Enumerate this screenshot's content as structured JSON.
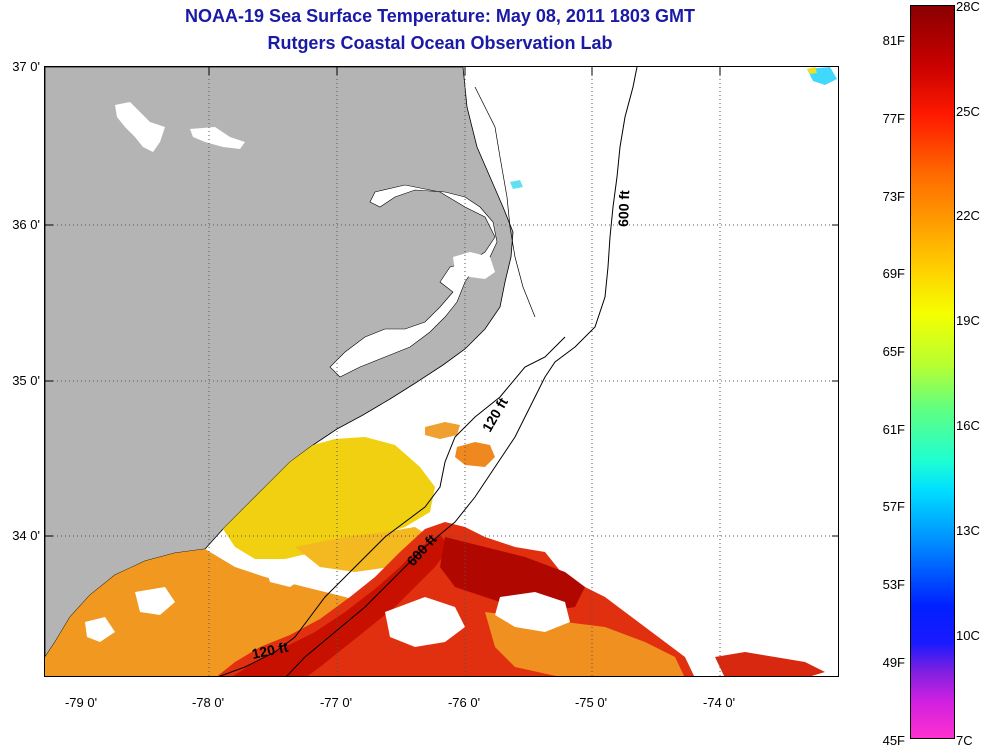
{
  "title_line1": "NOAA-19 Sea Surface Temperature:  May 08, 2011 1803 GMT",
  "title_line2": "Rutgers Coastal Ocean Observation Lab",
  "lat_labels": [
    "37 0'",
    "36 0'",
    "35 0'",
    "34 0'"
  ],
  "lon_labels": [
    "-79 0'",
    "-78 0'",
    "-77 0'",
    "-76 0'",
    "-75 0'",
    "-74 0'"
  ],
  "contours": {
    "c600_north": "600 ft",
    "c120": "120 ft",
    "c600_south": "600 ft",
    "c120_south": "120 ft"
  },
  "colorbar": {
    "fahrenheit": [
      "81F",
      "77F",
      "73F",
      "69F",
      "65F",
      "61F",
      "57F",
      "53F",
      "49F",
      "45F"
    ],
    "celsius": [
      "28C",
      "25C",
      "22C",
      "19C",
      "16C",
      "13C",
      "10C",
      "7C"
    ]
  },
  "colors": {
    "title": "#1a1aa6",
    "land": "#b4b4b4",
    "warm": "#d81a00",
    "orange": "#f09820",
    "yellow": "#f0d010"
  }
}
